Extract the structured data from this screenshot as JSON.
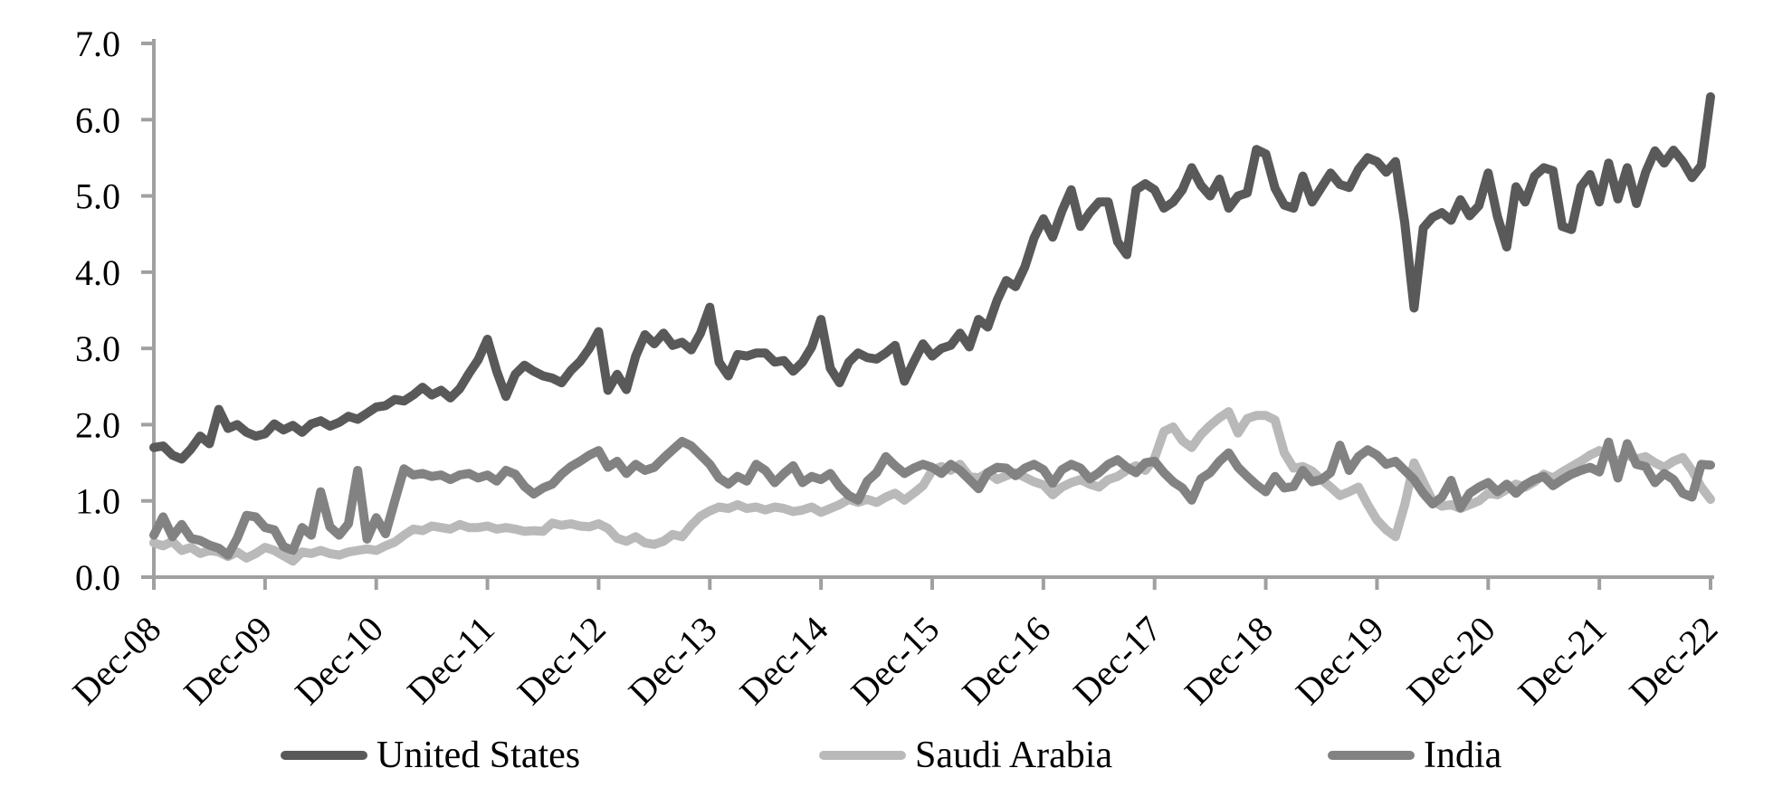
{
  "figure": {
    "background": "#ffffff",
    "axis_color": "#a0a0a0",
    "text_color": "#000000",
    "axis_font_size": 40,
    "legend_font_size": 42
  },
  "chart_data": {
    "type": "line",
    "title": "",
    "xlabel": "",
    "ylabel": "",
    "grid": false,
    "legend_position": "bottom",
    "x_frequency": "monthly",
    "x_start": "Dec-2008",
    "x_end": "Dec-2022",
    "x_tick_labels": [
      "Dec-08",
      "Dec-09",
      "Dec-10",
      "Dec-11",
      "Dec-12",
      "Dec-13",
      "Dec-14",
      "Dec-15",
      "Dec-16",
      "Dec-17",
      "Dec-18",
      "Dec-19",
      "Dec-20",
      "Dec-21",
      "Dec-22"
    ],
    "x_tick_step_months": 12,
    "ylim": [
      0.0,
      7.0
    ],
    "y_ticks": [
      0,
      1,
      2,
      3,
      4,
      5,
      6,
      7
    ],
    "y_tick_labels": [
      "0.0",
      "1.0",
      "2.0",
      "3.0",
      "4.0",
      "5.0",
      "6.0",
      "7.0"
    ],
    "series": [
      {
        "name": "United States",
        "color": "#595959",
        "stroke_width": 10,
        "values": [
          1.7,
          1.72,
          1.6,
          1.55,
          1.68,
          1.85,
          1.75,
          2.2,
          1.95,
          2.0,
          1.9,
          1.85,
          1.88,
          2.01,
          1.93,
          1.99,
          1.9,
          2.01,
          2.05,
          1.98,
          2.03,
          2.11,
          2.07,
          2.15,
          2.23,
          2.25,
          2.33,
          2.31,
          2.39,
          2.49,
          2.39,
          2.45,
          2.35,
          2.47,
          2.67,
          2.85,
          3.12,
          2.7,
          2.37,
          2.66,
          2.78,
          2.7,
          2.64,
          2.61,
          2.55,
          2.71,
          2.83,
          3.0,
          3.22,
          2.45,
          2.66,
          2.46,
          2.9,
          3.18,
          3.06,
          3.2,
          3.04,
          3.08,
          2.98,
          3.2,
          3.54,
          2.82,
          2.64,
          2.92,
          2.9,
          2.94,
          2.94,
          2.82,
          2.84,
          2.7,
          2.82,
          3.02,
          3.38,
          2.74,
          2.55,
          2.82,
          2.94,
          2.88,
          2.86,
          2.94,
          3.04,
          2.57,
          2.82,
          3.06,
          2.9,
          3.0,
          3.04,
          3.2,
          3.02,
          3.38,
          3.28,
          3.63,
          3.89,
          3.81,
          4.07,
          4.45,
          4.7,
          4.46,
          4.8,
          5.08,
          4.6,
          4.78,
          4.92,
          4.92,
          4.4,
          4.23,
          5.08,
          5.16,
          5.08,
          4.84,
          4.92,
          5.08,
          5.37,
          5.14,
          5.0,
          5.22,
          4.84,
          5.0,
          5.04,
          5.61,
          5.55,
          5.1,
          4.88,
          4.84,
          5.26,
          4.92,
          5.11,
          5.3,
          5.15,
          5.11,
          5.35,
          5.5,
          5.45,
          5.31,
          5.45,
          4.65,
          3.53,
          4.58,
          4.72,
          4.78,
          4.68,
          4.95,
          4.74,
          4.87,
          5.3,
          4.73,
          4.33,
          5.12,
          4.92,
          5.26,
          5.37,
          5.33,
          4.6,
          4.56,
          5.12,
          5.28,
          4.92,
          5.43,
          4.96,
          5.37,
          4.9,
          5.31,
          5.59,
          5.43,
          5.6,
          5.45,
          5.24,
          5.4,
          6.3
        ]
      },
      {
        "name": "Saudi Arabia",
        "color": "#b9b9b9",
        "stroke_width": 10,
        "values": [
          0.45,
          0.41,
          0.47,
          0.35,
          0.39,
          0.31,
          0.35,
          0.33,
          0.27,
          0.33,
          0.25,
          0.31,
          0.39,
          0.35,
          0.28,
          0.21,
          0.33,
          0.31,
          0.35,
          0.31,
          0.29,
          0.33,
          0.35,
          0.37,
          0.35,
          0.41,
          0.46,
          0.55,
          0.63,
          0.61,
          0.67,
          0.65,
          0.63,
          0.69,
          0.65,
          0.65,
          0.67,
          0.63,
          0.65,
          0.63,
          0.6,
          0.61,
          0.6,
          0.71,
          0.68,
          0.7,
          0.67,
          0.66,
          0.7,
          0.64,
          0.51,
          0.47,
          0.53,
          0.45,
          0.43,
          0.47,
          0.56,
          0.53,
          0.68,
          0.8,
          0.87,
          0.92,
          0.9,
          0.95,
          0.9,
          0.92,
          0.88,
          0.92,
          0.9,
          0.86,
          0.88,
          0.92,
          0.85,
          0.9,
          0.95,
          1.02,
          0.98,
          1.02,
          0.98,
          1.05,
          1.1,
          1.01,
          1.1,
          1.2,
          1.4,
          1.45,
          1.4,
          1.48,
          1.32,
          1.3,
          1.37,
          1.28,
          1.33,
          1.37,
          1.31,
          1.25,
          1.21,
          1.08,
          1.18,
          1.24,
          1.28,
          1.22,
          1.18,
          1.28,
          1.32,
          1.4,
          1.46,
          1.4,
          1.56,
          1.91,
          1.97,
          1.79,
          1.7,
          1.87,
          1.99,
          2.09,
          2.17,
          1.89,
          2.08,
          2.12,
          2.12,
          2.06,
          1.63,
          1.43,
          1.45,
          1.39,
          1.28,
          1.18,
          1.07,
          1.12,
          1.18,
          0.95,
          0.75,
          0.62,
          0.53,
          0.95,
          1.5,
          1.25,
          1.0,
          0.93,
          0.95,
          0.9,
          0.95,
          1.0,
          1.1,
          1.08,
          1.15,
          1.22,
          1.18,
          1.25,
          1.35,
          1.3,
          1.38,
          1.45,
          1.52,
          1.6,
          1.66,
          1.58,
          1.52,
          1.6,
          1.55,
          1.58,
          1.5,
          1.44,
          1.52,
          1.57,
          1.4,
          1.18,
          1.02
        ]
      },
      {
        "name": "India",
        "color": "#828282",
        "stroke_width": 10,
        "values": [
          0.55,
          0.79,
          0.53,
          0.69,
          0.51,
          0.48,
          0.42,
          0.38,
          0.29,
          0.51,
          0.81,
          0.79,
          0.65,
          0.62,
          0.4,
          0.35,
          0.65,
          0.55,
          1.12,
          0.66,
          0.55,
          0.7,
          1.4,
          0.5,
          0.78,
          0.57,
          1.0,
          1.42,
          1.34,
          1.36,
          1.32,
          1.34,
          1.28,
          1.34,
          1.36,
          1.3,
          1.34,
          1.26,
          1.4,
          1.35,
          1.19,
          1.09,
          1.17,
          1.22,
          1.35,
          1.45,
          1.52,
          1.6,
          1.66,
          1.44,
          1.52,
          1.36,
          1.48,
          1.4,
          1.44,
          1.56,
          1.67,
          1.78,
          1.72,
          1.6,
          1.48,
          1.3,
          1.22,
          1.32,
          1.26,
          1.48,
          1.4,
          1.24,
          1.36,
          1.46,
          1.24,
          1.32,
          1.28,
          1.36,
          1.19,
          1.07,
          1.01,
          1.26,
          1.37,
          1.58,
          1.46,
          1.36,
          1.43,
          1.48,
          1.44,
          1.36,
          1.48,
          1.4,
          1.28,
          1.16,
          1.37,
          1.44,
          1.43,
          1.33,
          1.43,
          1.48,
          1.41,
          1.23,
          1.41,
          1.48,
          1.43,
          1.29,
          1.37,
          1.48,
          1.54,
          1.44,
          1.37,
          1.5,
          1.52,
          1.37,
          1.25,
          1.17,
          1.01,
          1.29,
          1.37,
          1.52,
          1.63,
          1.44,
          1.32,
          1.21,
          1.12,
          1.32,
          1.17,
          1.19,
          1.4,
          1.25,
          1.28,
          1.37,
          1.73,
          1.4,
          1.58,
          1.67,
          1.6,
          1.48,
          1.52,
          1.4,
          1.28,
          1.1,
          0.96,
          1.05,
          1.27,
          0.91,
          1.1,
          1.18,
          1.24,
          1.12,
          1.22,
          1.1,
          1.21,
          1.28,
          1.32,
          1.2,
          1.28,
          1.35,
          1.4,
          1.44,
          1.38,
          1.77,
          1.3,
          1.75,
          1.48,
          1.45,
          1.24,
          1.36,
          1.28,
          1.1,
          1.05,
          1.48,
          1.47
        ]
      }
    ]
  }
}
